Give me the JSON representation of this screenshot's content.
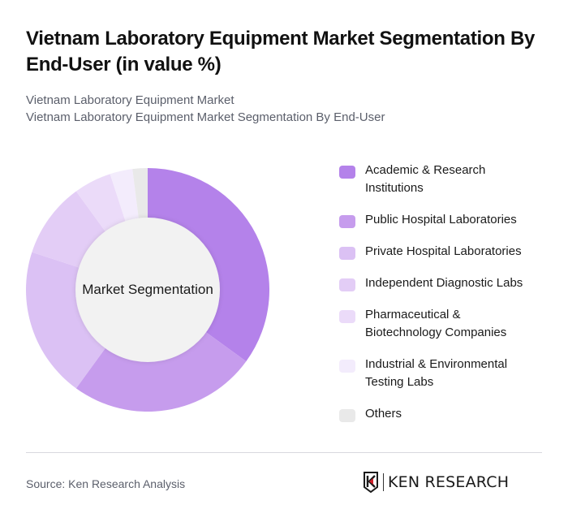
{
  "header": {
    "title": "Vietnam Laboratory Equipment Market Segmentation By End-User (in value %)",
    "subtitle_line1": "Vietnam Laboratory Equipment Market",
    "subtitle_line2": "Vietnam Laboratory Equipment Market Segmentation By End-User"
  },
  "chart": {
    "center_label": "Market Segmentation"
  },
  "legend": [
    {
      "label": "Academic & Research Institutions",
      "color": "#b482ea"
    },
    {
      "label": "Public Hospital Laboratories",
      "color": "#c69ced"
    },
    {
      "label": "Private Hospital Laboratories",
      "color": "#dbc1f4"
    },
    {
      "label": "Independent Diagnostic Labs",
      "color": "#e3cdf6"
    },
    {
      "label": "Pharmaceutical & Biotechnology Companies",
      "color": "#ebdbf9"
    },
    {
      "label": "Industrial & Environmental Testing Labs",
      "color": "#f3ecfc"
    },
    {
      "label": "Others",
      "color": "#e9e9e9"
    }
  ],
  "footer": {
    "source": "Source: Ken Research Analysis",
    "logo_text": "KEN RESEARCH"
  },
  "chart_data": {
    "type": "pie",
    "subtype": "donut",
    "title": "Vietnam Laboratory Equipment Market Segmentation By End-User (in value %)",
    "center_label": "Market Segmentation",
    "categories": [
      "Academic & Research Institutions",
      "Public Hospital Laboratories",
      "Private Hospital Laboratories",
      "Independent Diagnostic Labs",
      "Pharmaceutical & Biotechnology Companies",
      "Industrial & Environmental Testing Labs",
      "Others"
    ],
    "values": [
      35,
      25,
      20,
      10,
      5,
      3,
      2
    ],
    "colors": [
      "#b482ea",
      "#c69ced",
      "#dbc1f4",
      "#e3cdf6",
      "#ebdbf9",
      "#f3ecfc",
      "#e9e9e9"
    ],
    "unit": "%",
    "legend_position": "right",
    "start_angle": "top, clockwise"
  }
}
